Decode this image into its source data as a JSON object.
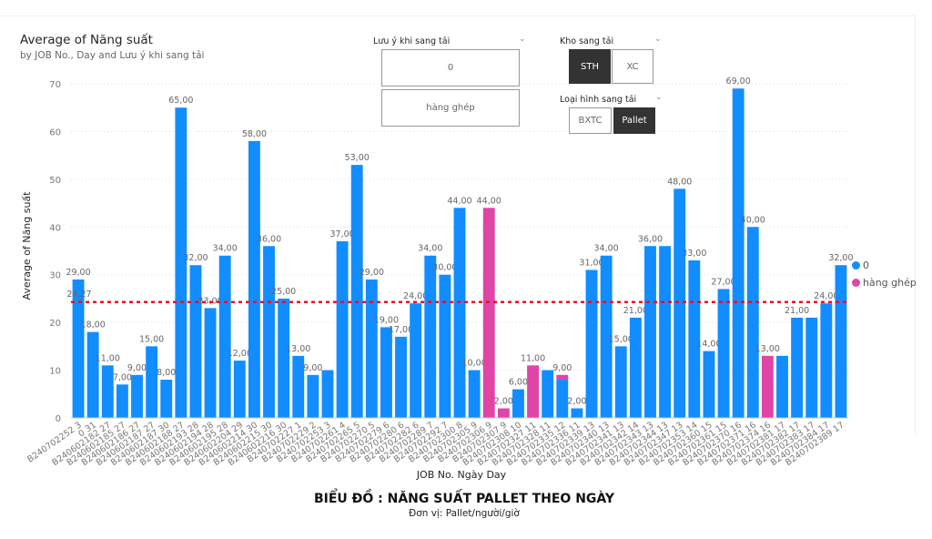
{
  "chart_title": "Average of Năng suất",
  "chart_subtitle": "by JOB No., Day and Lưu ý khi sang tải",
  "slicers": {
    "luu_y": {
      "title": "Lưu ý khi sang tải",
      "options": [
        "0",
        "hàng ghép"
      ]
    },
    "kho": {
      "title": "Kho sang tải",
      "options": [
        "STH",
        "XC"
      ],
      "selected": "STH"
    },
    "loai_hinh": {
      "title": "Loại hình sang tải",
      "options": [
        "BXTC",
        "Pallet"
      ],
      "selected": "Pallet"
    }
  },
  "footer": {
    "title": "BIỂU ĐỒ : NĂNG SUẤT PALLET  THEO NGÀY",
    "unit": "Đơn vị: Pallet/người/giờ"
  },
  "chart_data": {
    "type": "bar",
    "stacked": true,
    "xlabel": "JOB No. Ngày Day",
    "ylabel": "Average of Năng suất",
    "ylim": [
      0,
      70
    ],
    "yticks": [
      0,
      10,
      20,
      30,
      40,
      50,
      60,
      70
    ],
    "grid": true,
    "legend_position": "right",
    "average_line": {
      "value": 24.27,
      "label": "24,27",
      "color": "#E81123"
    },
    "categories": [
      "B240702252 3",
      "0 31",
      "B240602182 27",
      "B240602185 27",
      "B240602186 27",
      "B240602187 27",
      "B240602187 30",
      "B240602188 27",
      "B240602193 28",
      "B240602194 28",
      "B240602195 28",
      "B240602204 29",
      "B240602214 30",
      "B240602215 30",
      "B240602216 30",
      "B240702227 1",
      "B240702229 2",
      "B240702253 3",
      "B240702261 4",
      "B240702265 5",
      "B240702270 5",
      "B240702279 6",
      "B240702280 6",
      "B240702282 6",
      "B240702289 7",
      "B240702292 7",
      "B240702300 8",
      "B240702305 9",
      "B240702306 9",
      "B240702307 9",
      "B240702308 10",
      "B240702327 11",
      "B240702328 11",
      "B240702335 12",
      "B240702336 11",
      "B240702339 13",
      "B240702340 13",
      "B240702341 13",
      "B240702342 14",
      "B240702343 13",
      "B240702344 13",
      "B240702347 13",
      "B240702353 14",
      "B240702360 15",
      "B240702361 15",
      "B240702370 16",
      "B240702371 16",
      "B240702374 16",
      "B240702381 17",
      "B240702382 17",
      "B240702383 17",
      "B240702384 17",
      "B240702389 17"
    ],
    "series": [
      {
        "name": "0",
        "color": "#118DFF",
        "values": [
          29,
          18,
          11,
          7,
          9,
          15,
          8,
          65,
          32,
          23,
          34,
          12,
          58,
          36,
          25,
          13,
          9,
          10,
          37,
          53,
          29,
          19,
          17,
          24,
          34,
          30,
          44,
          10,
          0,
          0,
          6,
          0,
          10,
          8,
          2,
          31,
          34,
          15,
          21,
          36,
          36,
          48,
          33,
          14,
          27,
          69,
          40,
          0,
          13,
          21,
          21,
          24,
          32
        ]
      },
      {
        "name": "hàng ghép",
        "color": "#E044A7",
        "values": [
          0,
          0,
          0,
          0,
          0,
          0,
          0,
          0,
          0,
          0,
          0,
          0,
          0,
          0,
          0,
          0,
          0,
          0,
          0,
          0,
          0,
          0,
          0,
          0,
          0,
          0,
          0,
          0,
          44,
          2,
          0,
          11,
          0,
          1,
          0,
          0,
          0,
          0,
          0,
          0,
          0,
          0,
          0,
          0,
          0,
          0,
          0,
          13,
          0,
          0,
          0,
          0,
          0
        ]
      }
    ],
    "data_labels": [
      "29,00",
      "18,00",
      "11,00",
      "7,00",
      "9,00",
      "15,00",
      "8,00",
      "65,00",
      "32,00",
      "23,00",
      "34,00",
      "12,00",
      "58,00",
      "36,00",
      "25,00",
      "13,00",
      "9,00",
      null,
      "37,00",
      "53,00",
      "29,00",
      "19,00",
      "17,00",
      "24,00",
      "34,00",
      "30,00",
      "44,00",
      "10,00",
      "44,00",
      "2,00",
      "6,00",
      "11,00",
      null,
      "9,00",
      "2,00",
      "31,00",
      "34,00",
      "15,00",
      "21,00",
      "36,00",
      null,
      "48,00",
      "33,00",
      "14,00",
      "27,00",
      "69,00",
      "40,00",
      "13,00",
      null,
      "21,00",
      null,
      "24,00",
      "32,00"
    ]
  }
}
